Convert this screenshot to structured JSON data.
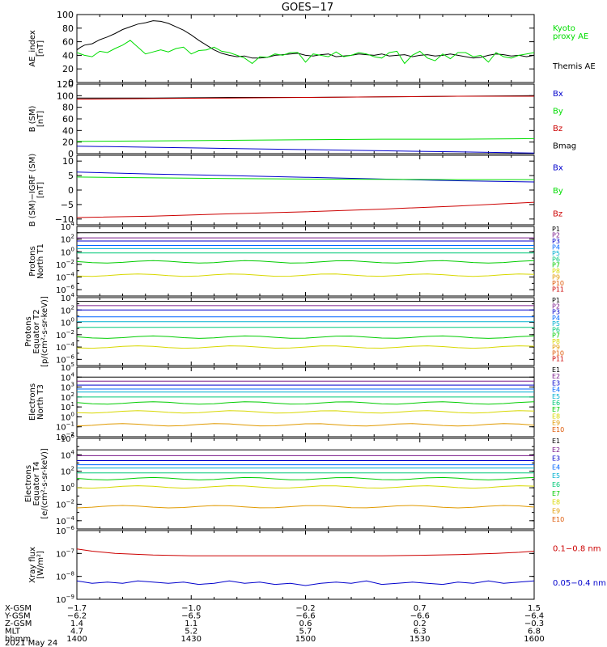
{
  "title": "GOES−17",
  "colors": {
    "black": "#000000",
    "green": "#00dd00",
    "blue": "#0000cc",
    "red": "#cc0000",
    "p_series": [
      "#000000",
      "#7a1a8a",
      "#0000cc",
      "#0066ff",
      "#00b0d0",
      "#00c878",
      "#00cc00",
      "#d8d800",
      "#e09a00",
      "#dd5500",
      "#cc0000",
      "#aa0000"
    ]
  },
  "chart_data": [
    {
      "type": "line",
      "ylabel": "AE_index\n[nT]",
      "ylim": [
        0,
        100
      ],
      "yticks": [
        "0",
        "20",
        "40",
        "60",
        "80",
        "100"
      ],
      "legend": [
        {
          "text": "Kyoto\nproxy AE",
          "color": "green"
        },
        {
          "text": "Themis AE",
          "color": "black"
        }
      ],
      "series": [
        {
          "name": "Themis AE",
          "color": "black",
          "x": [
            0,
            5,
            10,
            20,
            30,
            40,
            50,
            55,
            60,
            70,
            80,
            90,
            100,
            110,
            120,
            130,
            140,
            150,
            160,
            170,
            180,
            190,
            200,
            210,
            220,
            230,
            240,
            250,
            260,
            270,
            280,
            290,
            300,
            310,
            320,
            330,
            340,
            350,
            360,
            370,
            380,
            390,
            400,
            410,
            420,
            430,
            440,
            450,
            460,
            470,
            480,
            490,
            500,
            510,
            520,
            530,
            540,
            550,
            560,
            570,
            580,
            590,
            600
          ],
          "y": [
            48,
            52,
            55,
            57,
            63,
            67,
            72,
            75,
            78,
            82,
            86,
            88,
            91,
            90,
            87,
            82,
            77,
            70,
            62,
            55,
            48,
            43,
            40,
            38,
            39,
            36,
            36,
            37,
            40,
            41,
            42,
            43,
            40,
            39,
            41,
            42,
            38,
            39,
            40,
            42,
            41,
            40,
            42,
            39,
            40,
            41,
            38,
            40,
            41,
            39,
            40,
            42,
            40,
            38,
            36,
            37,
            40,
            42,
            41,
            39,
            40,
            38,
            40
          ]
        },
        {
          "name": "Kyoto proxy AE",
          "color": "green",
          "x": [
            0,
            10,
            20,
            30,
            40,
            50,
            60,
            70,
            80,
            90,
            100,
            110,
            120,
            130,
            140,
            150,
            160,
            170,
            180,
            190,
            200,
            210,
            220,
            230,
            240,
            250,
            260,
            270,
            280,
            290,
            300,
            310,
            320,
            330,
            340,
            350,
            360,
            370,
            380,
            390,
            400,
            410,
            420,
            430,
            440,
            450,
            460,
            470,
            480,
            490,
            500,
            510,
            520,
            530,
            540,
            550,
            560,
            570,
            580,
            590,
            600
          ],
          "y": [
            44,
            40,
            38,
            46,
            44,
            50,
            55,
            62,
            52,
            42,
            45,
            48,
            45,
            50,
            52,
            42,
            47,
            48,
            52,
            46,
            44,
            40,
            36,
            28,
            38,
            37,
            42,
            40,
            44,
            44,
            30,
            42,
            40,
            38,
            45,
            38,
            40,
            44,
            42,
            38,
            36,
            44,
            46,
            28,
            40,
            46,
            36,
            32,
            42,
            35,
            44,
            44,
            38,
            40,
            30,
            44,
            38,
            36,
            40,
            42,
            44
          ]
        }
      ]
    },
    {
      "type": "line",
      "ylabel": "B (SM)\n[nT]",
      "ylim": [
        0,
        120
      ],
      "yticks": [
        "0",
        "20",
        "40",
        "60",
        "80",
        "100",
        "120"
      ],
      "legend": [
        {
          "text": "Bx",
          "color": "blue"
        },
        {
          "text": "By",
          "color": "green"
        },
        {
          "text": "Bz",
          "color": "red"
        },
        {
          "text": "Bmag",
          "color": "black"
        }
      ],
      "series": [
        {
          "name": "Bmag",
          "color": "black",
          "x": [
            0,
            100,
            200,
            300,
            400,
            500,
            600
          ],
          "y": [
            96,
            96,
            97,
            97,
            98,
            99,
            100
          ]
        },
        {
          "name": "Bz",
          "color": "red",
          "x": [
            0,
            100,
            200,
            300,
            400,
            500,
            600
          ],
          "y": [
            94,
            95,
            96,
            97,
            98,
            99,
            99
          ]
        },
        {
          "name": "By",
          "color": "green",
          "x": [
            0,
            100,
            200,
            300,
            400,
            500,
            600
          ],
          "y": [
            21,
            22,
            23,
            24,
            25,
            25,
            26
          ]
        },
        {
          "name": "Bx",
          "color": "blue",
          "x": [
            0,
            100,
            200,
            300,
            400,
            500,
            600
          ],
          "y": [
            13,
            11,
            9,
            7,
            5,
            3,
            1
          ]
        }
      ]
    },
    {
      "type": "line",
      "ylabel": "B (SM)−IGRF (SM)\n[nT]",
      "ylim": [
        -12,
        12
      ],
      "yticks": [
        {
          "v": -10,
          "t": "−10"
        },
        {
          "v": -5,
          "t": "−5"
        },
        {
          "v": 0,
          "t": "0"
        },
        {
          "v": 5,
          "t": "5"
        },
        {
          "v": 10,
          "t": "10"
        }
      ],
      "legend": [
        {
          "text": "Bx",
          "color": "blue"
        },
        {
          "text": "By",
          "color": "green"
        },
        {
          "text": "Bz",
          "color": "red"
        }
      ],
      "series": [
        {
          "name": "Bx",
          "color": "blue",
          "x": [
            0,
            100,
            200,
            300,
            400,
            500,
            600
          ],
          "y": [
            6.2,
            5.5,
            5.0,
            4.4,
            3.8,
            3.2,
            2.8
          ]
        },
        {
          "name": "By",
          "color": "green",
          "x": [
            0,
            100,
            200,
            300,
            400,
            500,
            600
          ],
          "y": [
            4.5,
            4.2,
            4.0,
            3.8,
            3.7,
            3.6,
            3.6
          ]
        },
        {
          "name": "Bz",
          "color": "red",
          "x": [
            0,
            100,
            200,
            300,
            400,
            500,
            600
          ],
          "y": [
            -9.5,
            -9.0,
            -8.2,
            -7.5,
            -6.6,
            -5.5,
            -4.2
          ]
        }
      ]
    },
    {
      "type": "line",
      "ylabel": "Protons\nNorth T1",
      "log": true,
      "ylim_exp": [
        -7,
        4
      ],
      "ytick_exps": [
        -6,
        -4,
        -2,
        0,
        2,
        4
      ],
      "legend_labels": [
        "P1",
        "P2",
        "P3",
        "P4",
        "P5",
        "P6",
        "P7",
        "P8",
        "P9",
        "P10",
        "P11"
      ],
      "levels_exp": [
        3.0,
        2.2,
        1.7,
        1.0,
        0.5,
        -0.2,
        -1.6,
        -3.7
      ]
    },
    {
      "type": "line",
      "ylabel": "Protons\nEquator T2\n[p/(cm²-s-sr-keV)]",
      "log": true,
      "ylim_exp": [
        -7,
        4
      ],
      "ytick_exps": [
        -6,
        -4,
        -2,
        0,
        2,
        4
      ],
      "legend_labels": [
        "P1",
        "P2",
        "P3",
        "P4",
        "P5",
        "P6",
        "P7",
        "P8",
        "P9",
        "P10",
        "P11"
      ],
      "levels_exp": [
        3.4,
        2.7,
        2.0,
        0.9,
        0.1,
        -0.8,
        -2.4,
        -4.0
      ]
    },
    {
      "type": "line",
      "ylabel": "Electrons\nNorth T3",
      "log": true,
      "ylim_exp": [
        -2,
        5
      ],
      "ytick_exps": [
        -2,
        -1,
        0,
        1,
        2,
        3,
        4,
        5
      ],
      "legend_labels": [
        "E1",
        "E2",
        "E3",
        "E4",
        "E5",
        "E6",
        "E7",
        "E8",
        "E9",
        "E10"
      ],
      "levels_exp": [
        4.0,
        3.6,
        3.2,
        2.8,
        2.5,
        2.0,
        1.4,
        0.5,
        -0.8
      ]
    },
    {
      "type": "line",
      "ylabel": "Electrons\nEquator T4\n[e/(cm²-s-sr-keV)]",
      "log": true,
      "ylim_exp": [
        -5,
        6
      ],
      "ytick_exps": [
        -4,
        -2,
        0,
        2,
        4,
        6
      ],
      "legend_labels": [
        "E1",
        "E2",
        "E3",
        "E4",
        "E5",
        "E6",
        "E7",
        "E8",
        "E9",
        "E10"
      ],
      "levels_exp": [
        4.6,
        3.9,
        3.3,
        2.8,
        2.4,
        1.8,
        1.1,
        0.1,
        -2.3
      ]
    },
    {
      "type": "line",
      "ylabel": "Xray flux\n[W/m²]",
      "log": true,
      "ylim_exp": [
        -9,
        -6
      ],
      "ytick_exps": [
        -9,
        -8,
        -7,
        -6
      ],
      "legend": [
        {
          "text": "0.1−0.8 nm",
          "color": "red"
        },
        {
          "text": "0.05−0.4 nm",
          "color": "blue"
        }
      ],
      "series": [
        {
          "name": "0.1−0.8 nm",
          "color": "red",
          "x": [
            0,
            20,
            50,
            100,
            150,
            200,
            250,
            300,
            350,
            400,
            450,
            500,
            550,
            580,
            600
          ],
          "y_exp": [
            -6.8,
            -6.9,
            -7.0,
            -7.07,
            -7.1,
            -7.1,
            -7.1,
            -7.1,
            -7.1,
            -7.1,
            -7.08,
            -7.05,
            -7.0,
            -6.95,
            -6.9
          ]
        },
        {
          "name": "0.05−0.4 nm",
          "color": "blue",
          "x": [
            0,
            20,
            40,
            60,
            80,
            100,
            120,
            140,
            160,
            180,
            200,
            220,
            240,
            260,
            280,
            300,
            320,
            340,
            360,
            380,
            400,
            420,
            440,
            460,
            480,
            500,
            520,
            540,
            560,
            580,
            600
          ],
          "y_exp": [
            -8.2,
            -8.3,
            -8.25,
            -8.3,
            -8.2,
            -8.25,
            -8.3,
            -8.25,
            -8.35,
            -8.3,
            -8.2,
            -8.3,
            -8.25,
            -8.35,
            -8.3,
            -8.4,
            -8.3,
            -8.25,
            -8.3,
            -8.2,
            -8.35,
            -8.3,
            -8.25,
            -8.3,
            -8.35,
            -8.25,
            -8.3,
            -8.2,
            -8.3,
            -8.25,
            -8.2
          ]
        }
      ]
    }
  ],
  "x_axis": {
    "xlim": [
      0,
      600
    ],
    "tick_positions": [
      0,
      150,
      300,
      450,
      600
    ],
    "rows": [
      {
        "label": "X-GSM",
        "values": [
          "−1.7",
          "−1.0",
          "−0.2",
          "0.7",
          "1.5"
        ]
      },
      {
        "label": "Y-GSM",
        "values": [
          "−6.2",
          "−6.5",
          "−6.6",
          "−6.6",
          "−6.4"
        ]
      },
      {
        "label": "Z-GSM",
        "values": [
          "1.4",
          "1.1",
          "0.6",
          "0.2",
          "−0.3"
        ]
      },
      {
        "label": "MLT",
        "values": [
          "4.7",
          "5.2",
          "5.7",
          "6.3",
          "6.8"
        ]
      },
      {
        "label": "hhmm",
        "values": [
          "1400",
          "1430",
          "1500",
          "1530",
          "1600"
        ]
      }
    ],
    "date": "2021 May 24"
  }
}
